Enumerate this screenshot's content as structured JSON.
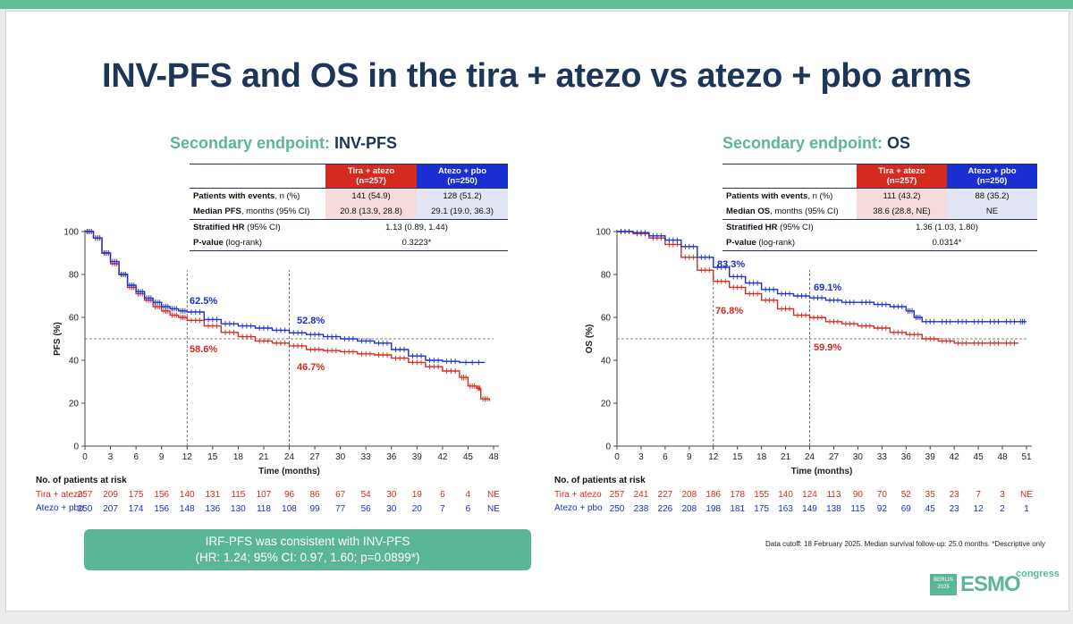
{
  "title": "INV-PFS and OS in the tira + atezo vs atezo + pbo arms",
  "colors": {
    "tira": "#d52b1e",
    "atezo": "#1a2fd1",
    "teal": "#5bb597",
    "navy": "#1d3558"
  },
  "panels": [
    {
      "prefix": "Secondary endpoint:",
      "name": "INV-PFS",
      "table": {
        "head_red": [
          "Tira + atezo",
          "(n=257)"
        ],
        "head_blue": [
          "Atezo + pbo",
          "(n=250)"
        ],
        "rows": [
          {
            "label_bold": "Patients with events",
            "label_rest": ", n (%)",
            "red": "141 (54.9)",
            "blue": "128 (51.2)"
          },
          {
            "label_bold": "Median PFS",
            "label_rest": ", months (95% CI)",
            "red": "20.8 (13.9, 28.8)",
            "blue": "29.1 (19.0, 36.3)"
          },
          {
            "label_bold": "Stratified HR",
            "label_rest": " (95% CI)",
            "both": "1.13 (0.89, 1.44)"
          },
          {
            "label_bold": "P-value",
            "label_rest": " (log-rank)",
            "both": "0.3223*"
          }
        ]
      },
      "risk": {
        "header": "No. of patients at risk",
        "tira_label": "Tira + atezo",
        "atezo_label": "Atezo + pbo",
        "tira": [
          "257",
          "209",
          "175",
          "156",
          "140",
          "131",
          "115",
          "107",
          "96",
          "86",
          "67",
          "54",
          "30",
          "19",
          "6",
          "4",
          "NE"
        ],
        "atezo": [
          "250",
          "207",
          "174",
          "156",
          "148",
          "136",
          "130",
          "118",
          "108",
          "99",
          "77",
          "56",
          "30",
          "20",
          "7",
          "6",
          "NE"
        ]
      }
    },
    {
      "prefix": "Secondary endpoint:",
      "name": "OS",
      "table": {
        "head_red": [
          "Tira + atezo",
          "(n=257)"
        ],
        "head_blue": [
          "Atezo + pbo",
          "(n=250)"
        ],
        "rows": [
          {
            "label_bold": "Patients with events",
            "label_rest": ", n (%)",
            "red": "111 (43.2)",
            "blue": "88 (35.2)"
          },
          {
            "label_bold": "Median OS",
            "label_rest": ", months (95% CI)",
            "red": "38.6 (28.8, NE)",
            "blue": "NE"
          },
          {
            "label_bold": "Stratified HR",
            "label_rest": " (95% CI)",
            "both": "1.36 (1.03, 1.80)"
          },
          {
            "label_bold": "P-value",
            "label_rest": " (log-rank)",
            "both": "0.0314*"
          }
        ]
      },
      "risk": {
        "header": "No. of patients at risk",
        "tira_label": "Tira + atezo",
        "atezo_label": "Atezo + pbo",
        "tira": [
          "257",
          "241",
          "227",
          "208",
          "186",
          "178",
          "155",
          "140",
          "124",
          "113",
          "90",
          "70",
          "52",
          "35",
          "23",
          "7",
          "3",
          "NE"
        ],
        "atezo": [
          "250",
          "238",
          "226",
          "208",
          "198",
          "181",
          "175",
          "163",
          "149",
          "138",
          "115",
          "92",
          "69",
          "45",
          "23",
          "12",
          "2",
          "1"
        ]
      }
    }
  ],
  "callout": {
    "line1": "IRF-PFS was consistent with INV-PFS",
    "line2": "(HR: 1.24; 95% CI: 0.97, 1.60; p=0.0899*)"
  },
  "footnote": "Data cutoff: 18 February 2025. Median survival follow-up: 25.0 months. *Descriptive only",
  "logo": {
    "city": "BERLIN",
    "year": "2025",
    "brand": "ESMO",
    "suffix": "congress"
  },
  "chart_data": [
    {
      "type": "line",
      "xlabel": "Time (months)",
      "ylabel": "PFS (%)",
      "xlim": [
        0,
        48
      ],
      "ylim": [
        0,
        100
      ],
      "xticks": [
        0,
        3,
        6,
        9,
        12,
        15,
        18,
        21,
        24,
        27,
        30,
        33,
        36,
        39,
        42,
        45,
        48
      ],
      "yticks": [
        0,
        20,
        40,
        60,
        80,
        100
      ],
      "reference_y": 50,
      "landmarks": [
        12,
        24
      ],
      "series": [
        {
          "name": "Tira + atezo",
          "color": "#d52b1e",
          "points": [
            [
              0,
              100
            ],
            [
              1,
              97
            ],
            [
              2,
              90
            ],
            [
              3,
              85
            ],
            [
              4,
              80
            ],
            [
              5,
              74
            ],
            [
              6,
              71
            ],
            [
              7,
              68
            ],
            [
              8,
              65
            ],
            [
              9,
              63
            ],
            [
              10,
              61
            ],
            [
              11,
              60
            ],
            [
              12,
              58.6
            ],
            [
              14,
              56
            ],
            [
              16,
              53
            ],
            [
              18,
              51
            ],
            [
              20,
              49
            ],
            [
              22,
              48
            ],
            [
              24,
              46.7
            ],
            [
              26,
              45
            ],
            [
              28,
              44.5
            ],
            [
              30,
              44
            ],
            [
              32,
              43
            ],
            [
              34,
              42.5
            ],
            [
              36,
              41
            ],
            [
              38,
              39
            ],
            [
              40,
              37
            ],
            [
              42,
              35
            ],
            [
              44,
              32
            ],
            [
              45,
              28
            ],
            [
              46,
              27
            ],
            [
              46.5,
              22
            ],
            [
              47.5,
              21
            ]
          ]
        },
        {
          "name": "Atezo + pbo",
          "color": "#1a2fd1",
          "points": [
            [
              0,
              100
            ],
            [
              1,
              97
            ],
            [
              2,
              90
            ],
            [
              3,
              86
            ],
            [
              4,
              80
            ],
            [
              5,
              75
            ],
            [
              6,
              72
            ],
            [
              7,
              69
            ],
            [
              8,
              67
            ],
            [
              9,
              65
            ],
            [
              10,
              64
            ],
            [
              11,
              63
            ],
            [
              12,
              62.5
            ],
            [
              14,
              59
            ],
            [
              16,
              57
            ],
            [
              18,
              56
            ],
            [
              20,
              55
            ],
            [
              22,
              54
            ],
            [
              24,
              52.8
            ],
            [
              26,
              52
            ],
            [
              28,
              51
            ],
            [
              30,
              50
            ],
            [
              32,
              49
            ],
            [
              34,
              48
            ],
            [
              36,
              45
            ],
            [
              38,
              42
            ],
            [
              40,
              40
            ],
            [
              42,
              39.5
            ],
            [
              44,
              39
            ],
            [
              47,
              39
            ]
          ]
        }
      ],
      "annotations": [
        {
          "text": "62.5%",
          "series": "Atezo + pbo"
        },
        {
          "text": "58.6%",
          "series": "Tira + atezo"
        },
        {
          "text": "52.8%",
          "series": "Atezo + pbo"
        },
        {
          "text": "46.7%",
          "series": "Tira + atezo"
        }
      ]
    },
    {
      "type": "line",
      "xlabel": "Time (months)",
      "ylabel": "OS (%)",
      "xlim": [
        0,
        51
      ],
      "ylim": [
        0,
        100
      ],
      "xticks": [
        0,
        3,
        6,
        9,
        12,
        15,
        18,
        21,
        24,
        27,
        30,
        33,
        36,
        39,
        42,
        45,
        48,
        51
      ],
      "yticks": [
        0,
        20,
        40,
        60,
        80,
        100
      ],
      "reference_y": 50,
      "landmarks": [
        12,
        24
      ],
      "series": [
        {
          "name": "Tira + atezo",
          "color": "#d52b1e",
          "points": [
            [
              0,
              100
            ],
            [
              2,
              99
            ],
            [
              4,
              97
            ],
            [
              6,
              94
            ],
            [
              8,
              88
            ],
            [
              10,
              82
            ],
            [
              12,
              76.8
            ],
            [
              14,
              74
            ],
            [
              16,
              71
            ],
            [
              18,
              68
            ],
            [
              20,
              64
            ],
            [
              22,
              61
            ],
            [
              24,
              59.9
            ],
            [
              26,
              58
            ],
            [
              28,
              57
            ],
            [
              30,
              56
            ],
            [
              32,
              55
            ],
            [
              34,
              53
            ],
            [
              36,
              52
            ],
            [
              38,
              50
            ],
            [
              40,
              49
            ],
            [
              42,
              48
            ],
            [
              44,
              48
            ],
            [
              46,
              48
            ],
            [
              48,
              48
            ],
            [
              50,
              48
            ]
          ]
        },
        {
          "name": "Atezo + pbo",
          "color": "#1a2fd1",
          "points": [
            [
              0,
              100
            ],
            [
              2,
              99.5
            ],
            [
              4,
              98
            ],
            [
              6,
              96
            ],
            [
              8,
              93
            ],
            [
              10,
              88
            ],
            [
              12,
              83.3
            ],
            [
              14,
              79
            ],
            [
              16,
              76
            ],
            [
              18,
              73
            ],
            [
              20,
              71
            ],
            [
              22,
              70
            ],
            [
              24,
              69.1
            ],
            [
              26,
              68
            ],
            [
              28,
              67
            ],
            [
              30,
              67
            ],
            [
              32,
              66
            ],
            [
              34,
              65
            ],
            [
              36,
              63
            ],
            [
              37,
              60
            ],
            [
              38,
              58
            ],
            [
              40,
              58
            ],
            [
              42,
              58
            ],
            [
              44,
              58
            ],
            [
              46,
              58
            ],
            [
              48,
              58
            ],
            [
              50,
              58
            ],
            [
              51,
              58
            ]
          ]
        }
      ],
      "annotations": [
        {
          "text": "83.3%",
          "series": "Atezo + pbo"
        },
        {
          "text": "76.8%",
          "series": "Tira + atezo"
        },
        {
          "text": "69.1%",
          "series": "Atezo + pbo"
        },
        {
          "text": "59.9%",
          "series": "Tira + atezo"
        }
      ]
    }
  ]
}
